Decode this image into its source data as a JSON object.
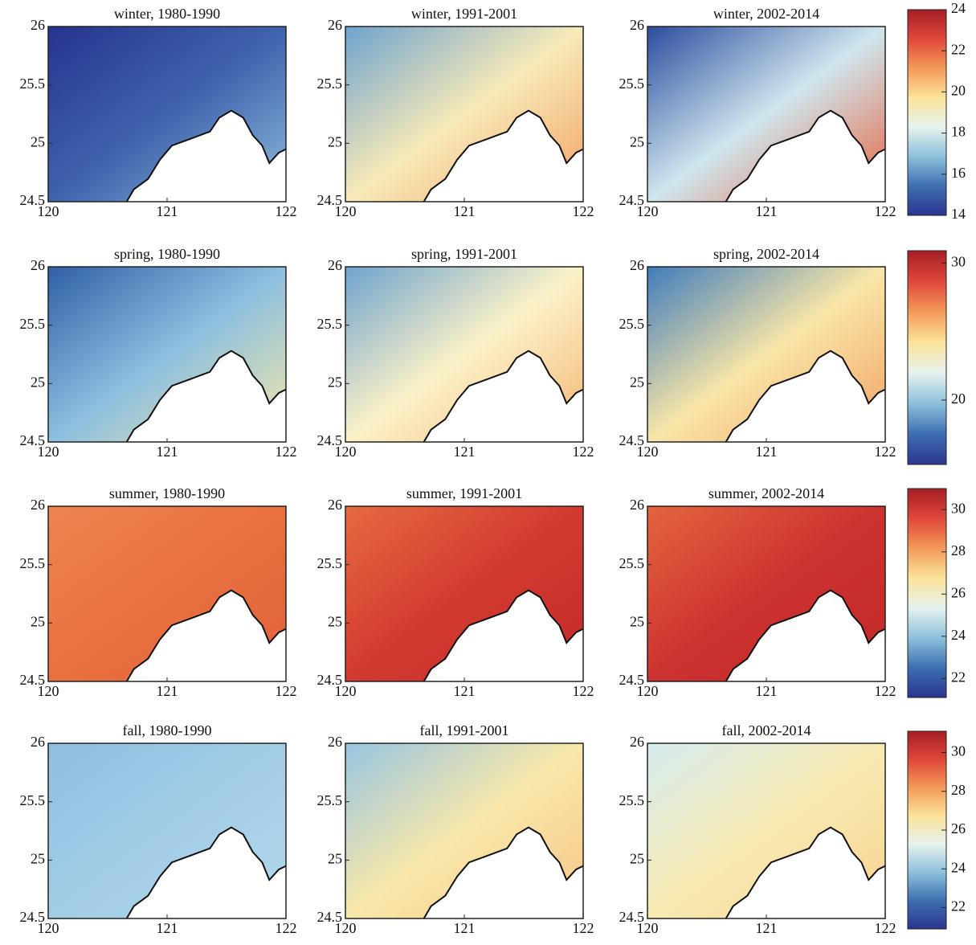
{
  "panels": [
    [
      {
        "title": "winter, 1980-1990",
        "fill": [
          "#26338f",
          "#3f63ad",
          "#8fbcdc"
        ]
      },
      {
        "title": "winter, 1991-2001",
        "fill": [
          "#6fa3cf",
          "#f7eab8",
          "#f2a064"
        ]
      },
      {
        "title": "winter, 2002-2014",
        "fill": [
          "#2c4c9e",
          "#cfe6ee",
          "#e8623e"
        ]
      }
    ],
    [
      {
        "title": "spring, 1980-1990",
        "fill": [
          "#2f5fa6",
          "#8cbfe0",
          "#f4e8a8"
        ]
      },
      {
        "title": "spring, 1991-2001",
        "fill": [
          "#6fa3cf",
          "#fbf2c8",
          "#f4b474"
        ]
      },
      {
        "title": "spring, 2002-2014",
        "fill": [
          "#3f7cbc",
          "#f8e6a8",
          "#f2a062"
        ]
      }
    ],
    [
      {
        "title": "summer, 1980-1990",
        "fill": [
          "#ee8452",
          "#e9713f",
          "#e0603c"
        ]
      },
      {
        "title": "summer, 1991-2001",
        "fill": [
          "#e66a40",
          "#d23a30",
          "#c42a2a"
        ]
      },
      {
        "title": "summer, 2002-2014",
        "fill": [
          "#e4643e",
          "#cc3230",
          "#c4282a"
        ]
      }
    ],
    [
      {
        "title": "fall, 1980-1990",
        "fill": [
          "#8ebfe0",
          "#a2cde6",
          "#b4d8ea"
        ]
      },
      {
        "title": "fall, 1991-2001",
        "fill": [
          "#98c5e2",
          "#f8e8aa",
          "#f6c486"
        ]
      },
      {
        "title": "fall, 2002-2014",
        "fill": [
          "#d6ecf0",
          "#f8eab2",
          "#f6d290"
        ]
      }
    ]
  ],
  "axes": {
    "xlim": [
      120,
      122
    ],
    "xticks": [
      120,
      121,
      122
    ],
    "ylim": [
      24.5,
      26
    ],
    "yticks": [
      24.5,
      25,
      25.5,
      26
    ]
  },
  "colorbars": [
    {
      "lim": [
        14,
        24
      ],
      "ticks": [
        14,
        16,
        18,
        20,
        22,
        24
      ]
    },
    {
      "lim": [
        15.3,
        30.9
      ],
      "ticks": [
        20,
        30
      ]
    },
    {
      "lim": [
        21.1,
        31.0
      ],
      "ticks": [
        22,
        24,
        26,
        28,
        30
      ]
    },
    {
      "lim": [
        20.9,
        31.1
      ],
      "ticks": [
        22,
        24,
        26,
        28,
        30
      ]
    }
  ],
  "colormap": [
    "#2b3590",
    "#3d6fb0",
    "#8cc0dc",
    "#e6f2ee",
    "#fbe39a",
    "#f39a58",
    "#e0473a",
    "#a51e24"
  ]
}
